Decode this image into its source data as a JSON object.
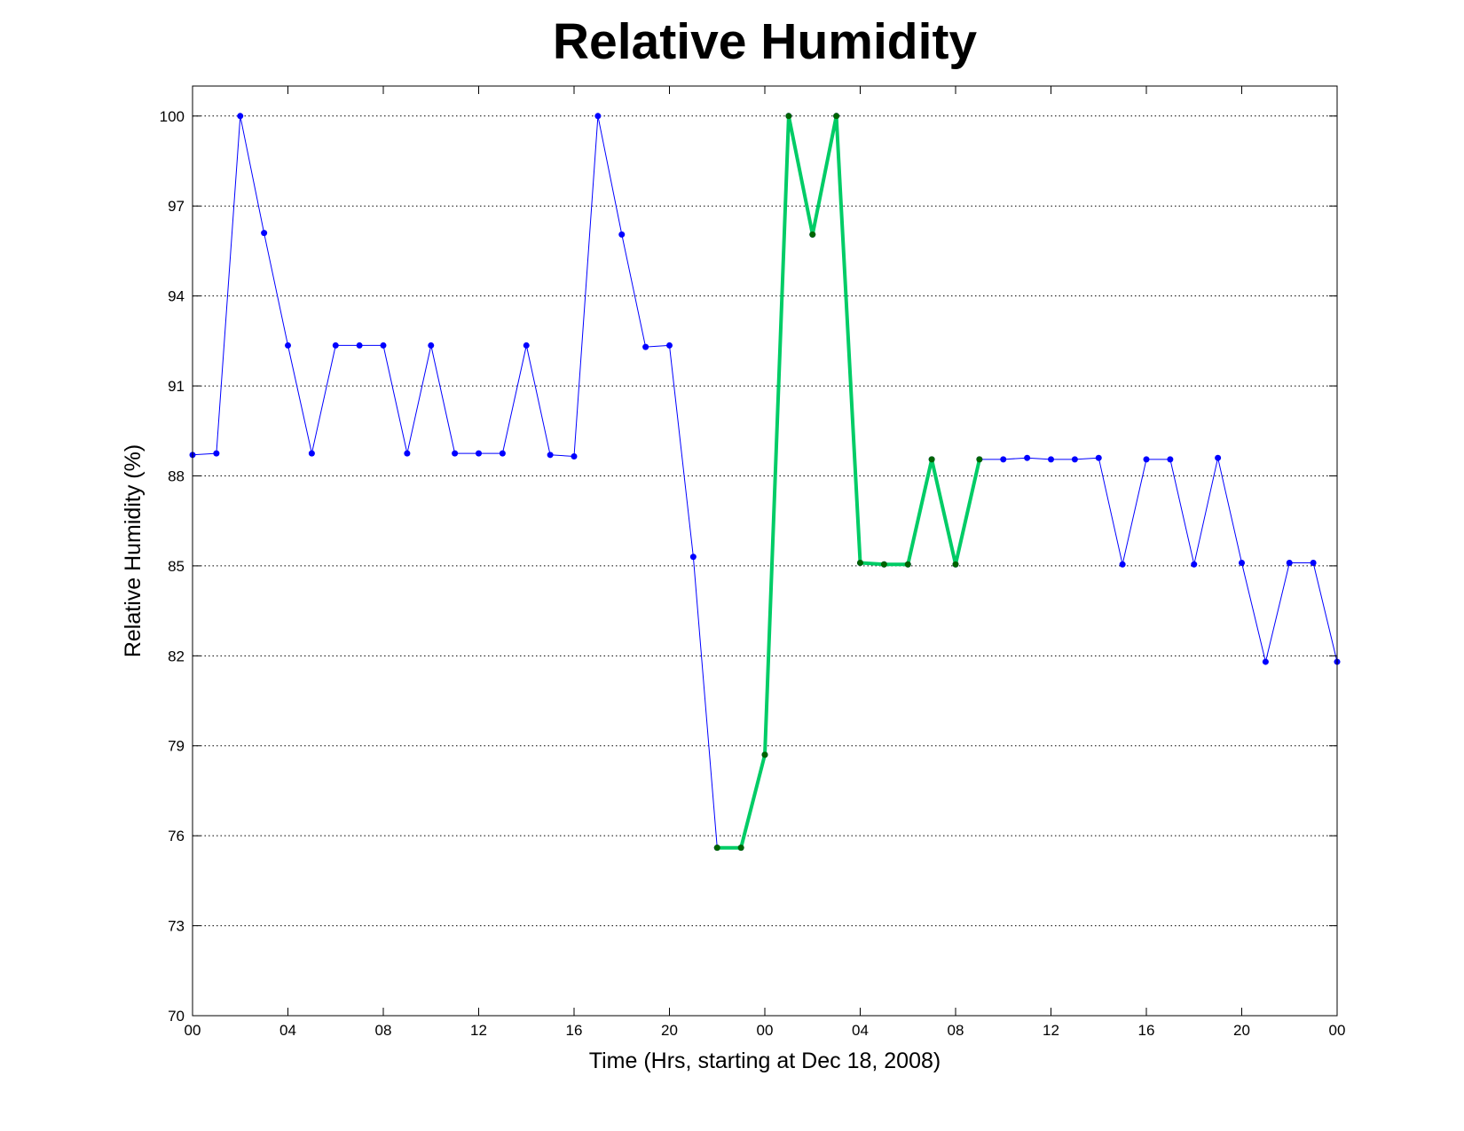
{
  "chart_data": {
    "type": "line",
    "title": "Relative Humidity",
    "xlabel": "Time (Hrs, starting at Dec 18, 2008)",
    "ylabel": "Relative Humidity (%)",
    "xlim": [
      0,
      48
    ],
    "ylim": [
      70,
      101
    ],
    "y_ticks": [
      70,
      73,
      76,
      79,
      82,
      85,
      88,
      91,
      94,
      97,
      100
    ],
    "x_ticks": [
      0,
      4,
      8,
      12,
      16,
      20,
      24,
      28,
      32,
      36,
      40,
      44,
      48
    ],
    "x_tick_labels": [
      "00",
      "04",
      "08",
      "12",
      "16",
      "20",
      "00",
      "04",
      "08",
      "12",
      "16",
      "20",
      "00"
    ],
    "grid": true,
    "series": [
      {
        "color": "#0000ff",
        "marker_color": "#0000ff",
        "x": [
          0,
          1,
          2,
          3,
          4,
          5,
          6,
          7,
          8,
          9,
          10,
          11,
          12,
          13,
          14,
          15,
          16,
          17,
          18,
          19,
          20,
          21,
          22,
          23,
          24,
          25,
          26,
          27,
          28,
          29,
          30,
          31,
          32,
          33,
          34,
          35,
          36,
          37,
          38,
          39,
          40,
          41,
          42,
          43,
          44,
          45,
          46,
          47,
          48
        ],
        "values": [
          88.7,
          88.75,
          100,
          96.1,
          92.35,
          88.75,
          92.35,
          92.35,
          92.35,
          88.75,
          92.35,
          88.75,
          88.75,
          88.75,
          92.35,
          88.7,
          88.65,
          100,
          96.05,
          92.3,
          92.35,
          85.3,
          75.6,
          75.6,
          78.7,
          100,
          96.05,
          100,
          85.1,
          85.05,
          85.05,
          88.55,
          85.05,
          88.55,
          88.55,
          88.6,
          88.55,
          88.55,
          88.6,
          85.05,
          88.55,
          88.55,
          85.05,
          88.6,
          85.1,
          81.8,
          85.1,
          85.1,
          81.8
        ]
      },
      {
        "color": "#00cc66",
        "marker_color": "#006400",
        "x": [
          22,
          23,
          24,
          25,
          26,
          27,
          28,
          29,
          30,
          31,
          32,
          33
        ],
        "values": [
          75.6,
          75.6,
          78.7,
          100,
          96.05,
          100,
          85.1,
          85.05,
          85.05,
          88.55,
          85.05,
          88.55
        ]
      }
    ]
  }
}
